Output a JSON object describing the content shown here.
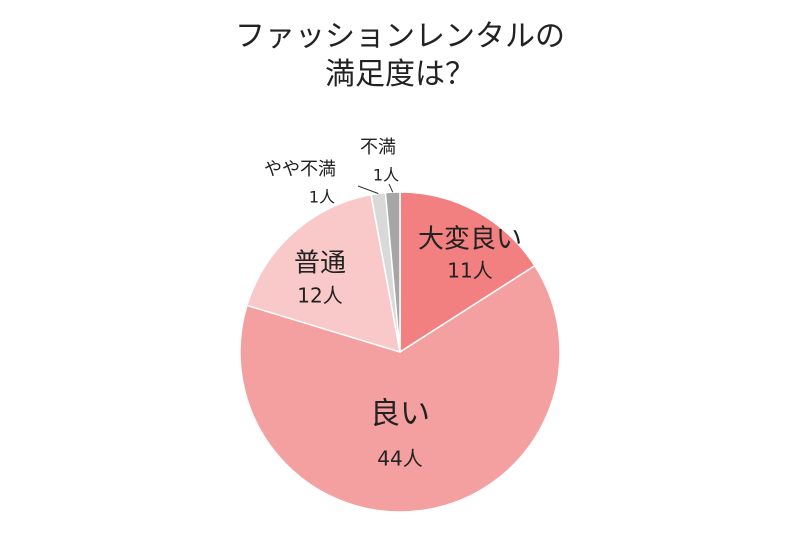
{
  "chart_data": {
    "type": "pie",
    "title": "ファッションレンタルの\n満足度は？",
    "categories": [
      "大変良い",
      "良い",
      "普通",
      "やや不満",
      "不満"
    ],
    "values": [
      11,
      44,
      12,
      1,
      1
    ],
    "value_labels": [
      "11人",
      "44人",
      "12人",
      "1人",
      "1人"
    ],
    "colors": [
      "#f28080",
      "#f5a0a0",
      "#f9c9c9",
      "#d9d9d9",
      "#a6a6a6"
    ]
  }
}
